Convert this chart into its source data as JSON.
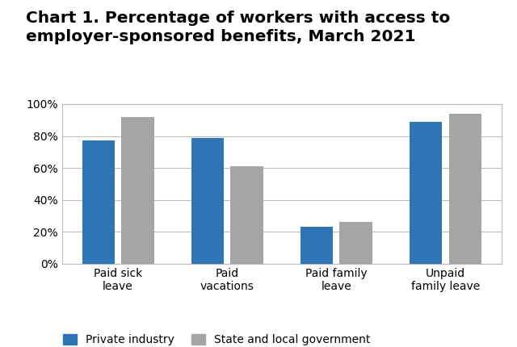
{
  "title_line1": "Chart 1. Percentage of workers with access to",
  "title_line2": "employer-sponsored benefits, March 2021",
  "categories": [
    "Paid sick\nleave",
    "Paid\nvacations",
    "Paid family\nleave",
    "Unpaid\nfamily leave"
  ],
  "private_values": [
    77,
    79,
    23,
    89
  ],
  "government_values": [
    92,
    61,
    26,
    94
  ],
  "private_color": "#2E75B6",
  "government_color": "#A5A5A5",
  "ylim": [
    0,
    100
  ],
  "yticks": [
    0,
    20,
    40,
    60,
    80,
    100
  ],
  "ytick_labels": [
    "0%",
    "20%",
    "40%",
    "60%",
    "80%",
    "100%"
  ],
  "legend_private": "Private industry",
  "legend_government": "State and local government",
  "bar_width": 0.3,
  "title_fontsize": 14.5,
  "tick_fontsize": 10,
  "legend_fontsize": 10,
  "background_color": "#FFFFFF",
  "plot_bg_color": "#FFFFFF",
  "grid_color": "#BBBBBB",
  "box_color": "#BBBBBB"
}
